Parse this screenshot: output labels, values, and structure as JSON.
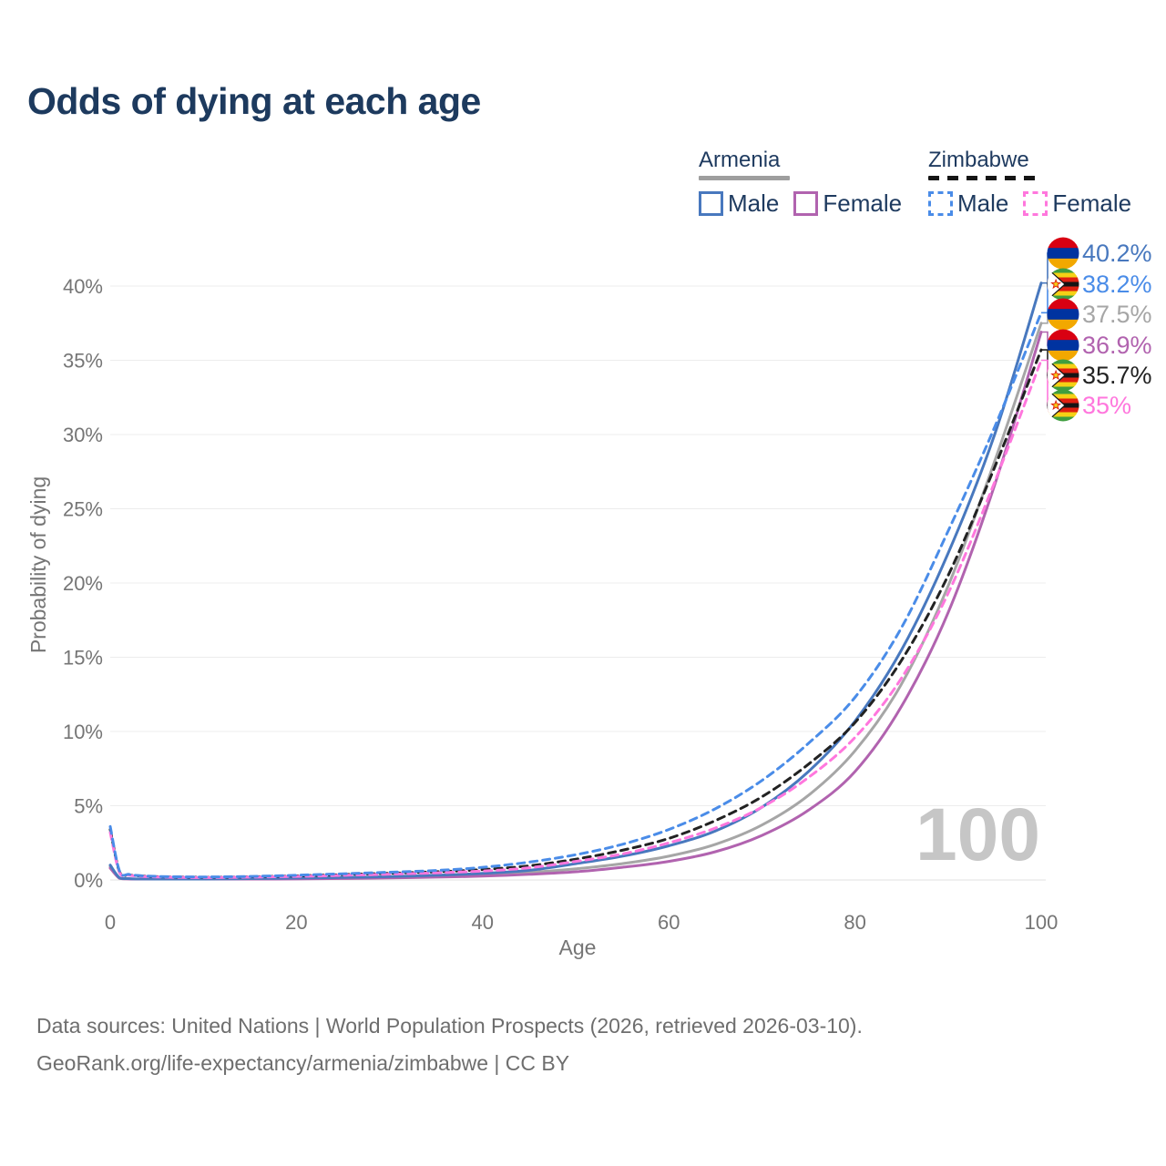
{
  "title": "Odds of dying at each age",
  "watermark": "100",
  "footer": {
    "line1": "Data sources: United Nations | World Population Prospects (2026, retrieved 2026-03-10).",
    "line2": "GeoRank.org/life-expectancy/armenia/zimbabwe | CC BY"
  },
  "legend": {
    "groups": [
      {
        "country": "Armenia",
        "line_style": "solid",
        "underline_color": "#9e9e9e",
        "items": [
          {
            "label": "Male",
            "color": "#4878be"
          },
          {
            "label": "Female",
            "color": "#b163af"
          }
        ]
      },
      {
        "country": "Zimbabwe",
        "line_style": "dashed",
        "underline_color": "#151515",
        "items": [
          {
            "label": "Male",
            "color": "#4a8ce8"
          },
          {
            "label": "Female",
            "color": "#ff77dd"
          }
        ]
      }
    ]
  },
  "chart_data": {
    "type": "line",
    "title": "Odds of dying at each age",
    "xlabel": "Age",
    "ylabel": "Probability of dying",
    "xlim": [
      0,
      100
    ],
    "ylim": [
      0,
      40
    ],
    "grid": "horizontal-only",
    "x_ticks": [
      0,
      20,
      40,
      60,
      80,
      100
    ],
    "y_ticks": [
      0,
      5,
      10,
      15,
      20,
      25,
      30,
      35,
      40
    ],
    "y_tick_labels": [
      "0%",
      "5%",
      "10%",
      "15%",
      "20%",
      "25%",
      "30%",
      "35%",
      "40%"
    ],
    "x": [
      0,
      1,
      2,
      3,
      5,
      10,
      15,
      20,
      25,
      30,
      35,
      40,
      45,
      50,
      55,
      60,
      65,
      70,
      75,
      80,
      85,
      90,
      95,
      100
    ],
    "unit": "percent",
    "series": [
      {
        "name": "Armenia (both sexes)",
        "country": "Armenia",
        "flag": "armenia",
        "color": "#a6a6a6",
        "dash": "solid",
        "end_value": 37.5,
        "end_label": "37.5%",
        "label_slot": 2,
        "values": [
          0.9,
          0.13,
          0.08,
          0.06,
          0.05,
          0.05,
          0.07,
          0.1,
          0.13,
          0.18,
          0.25,
          0.34,
          0.5,
          0.75,
          1.1,
          1.6,
          2.4,
          3.7,
          5.7,
          8.7,
          13.2,
          19.8,
          28.2,
          37.5
        ]
      },
      {
        "name": "Armenia Female",
        "country": "Armenia",
        "flag": "armenia",
        "color": "#b163af",
        "dash": "solid",
        "end_value": 36.9,
        "end_label": "36.9%",
        "label_slot": 3,
        "values": [
          0.8,
          0.11,
          0.07,
          0.05,
          0.04,
          0.04,
          0.05,
          0.07,
          0.1,
          0.14,
          0.19,
          0.26,
          0.38,
          0.55,
          0.85,
          1.25,
          1.9,
          3.0,
          4.7,
          7.3,
          11.7,
          18.0,
          26.6,
          36.9
        ]
      },
      {
        "name": "Armenia Male",
        "country": "Armenia",
        "flag": "armenia",
        "color": "#4878be",
        "dash": "solid",
        "end_value": 40.2,
        "end_label": "40.2%",
        "label_slot": 0,
        "values": [
          1.0,
          0.15,
          0.09,
          0.07,
          0.06,
          0.06,
          0.09,
          0.13,
          0.17,
          0.23,
          0.32,
          0.44,
          0.65,
          1.1,
          1.6,
          2.3,
          3.3,
          4.9,
          7.3,
          10.7,
          15.5,
          22.0,
          30.0,
          40.2
        ]
      },
      {
        "name": "Zimbabwe (both sexes)",
        "country": "Zimbabwe",
        "flag": "zimbabwe",
        "color": "#222222",
        "dash": "dashed",
        "end_value": 35.7,
        "end_label": "35.7%",
        "label_slot": 4,
        "values": [
          3.4,
          0.55,
          0.35,
          0.28,
          0.22,
          0.18,
          0.21,
          0.27,
          0.36,
          0.45,
          0.55,
          0.7,
          0.95,
          1.4,
          2.0,
          2.8,
          4.0,
          5.6,
          7.8,
          10.6,
          14.8,
          20.5,
          27.8,
          35.7
        ]
      },
      {
        "name": "Zimbabwe Female",
        "country": "Zimbabwe",
        "flag": "zimbabwe",
        "color": "#ff77dd",
        "dash": "dashed",
        "end_value": 35.0,
        "end_label": "35%",
        "label_slot": 5,
        "values": [
          3.2,
          0.5,
          0.32,
          0.26,
          0.2,
          0.16,
          0.19,
          0.24,
          0.31,
          0.39,
          0.48,
          0.6,
          0.82,
          1.25,
          1.75,
          2.5,
          3.5,
          4.9,
          6.9,
          9.6,
          13.6,
          19.3,
          26.8,
          35.0
        ]
      },
      {
        "name": "Zimbabwe Male",
        "country": "Zimbabwe",
        "flag": "zimbabwe",
        "color": "#4a8ce8",
        "dash": "dashed",
        "end_value": 38.2,
        "end_label": "38.2%",
        "label_slot": 1,
        "values": [
          3.6,
          0.6,
          0.38,
          0.3,
          0.24,
          0.2,
          0.24,
          0.32,
          0.42,
          0.52,
          0.64,
          0.85,
          1.2,
          1.7,
          2.4,
          3.4,
          4.8,
          6.7,
          9.2,
          12.3,
          17.0,
          23.5,
          30.5,
          38.2
        ]
      }
    ],
    "flag_colors": {
      "armenia": [
        "#D90012",
        "#0033A0",
        "#F2A800"
      ],
      "zimbabwe": [
        "#3f9e3f",
        "#f5d115",
        "#de2010",
        "#141414",
        "#de2010",
        "#f5d115",
        "#3f9e3f"
      ]
    }
  }
}
